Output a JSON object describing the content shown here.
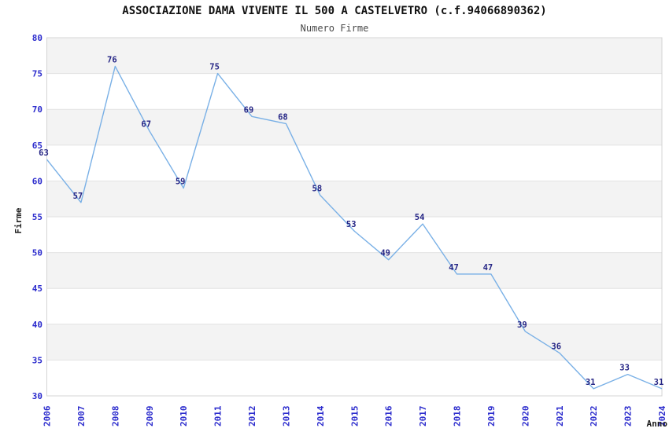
{
  "header": {
    "title": "ASSOCIAZIONE DAMA VIVENTE IL 500 A CASTELVETRO (c.f.94066890362)",
    "subtitle": "Numero Firme"
  },
  "chart_data": {
    "type": "line",
    "title": "ASSOCIAZIONE DAMA VIVENTE IL 500 A CASTELVETRO (c.f.94066890362)",
    "subtitle": "Numero Firme",
    "xlabel": "Anno",
    "ylabel": "Firme",
    "categories": [
      "2006",
      "2007",
      "2008",
      "2009",
      "2010",
      "2011",
      "2012",
      "2013",
      "2014",
      "2015",
      "2016",
      "2017",
      "2018",
      "2019",
      "2020",
      "2021",
      "2022",
      "2023",
      "2024"
    ],
    "values": [
      63,
      57,
      76,
      67,
      59,
      75,
      69,
      68,
      58,
      53,
      49,
      54,
      47,
      47,
      39,
      36,
      31,
      33,
      31
    ],
    "ylim": [
      30,
      80
    ],
    "ytick_step": 5,
    "yticks": [
      30,
      35,
      40,
      45,
      50,
      55,
      60,
      65,
      70,
      75,
      80
    ],
    "grid": true,
    "legend": "none",
    "point_labels_visible": true,
    "colors": {
      "line": "#79b0e6",
      "tick_label": "#2c2ccd",
      "point_label": "#252585",
      "band_alt": "#f3f3f3",
      "band_base": "#ffffff",
      "grid_line": "#e2e2e2",
      "plot_border": "#d4d4d4",
      "axis_title": "#1c1c1c",
      "title": "#111111",
      "subtitle": "#4a4a4a"
    }
  }
}
